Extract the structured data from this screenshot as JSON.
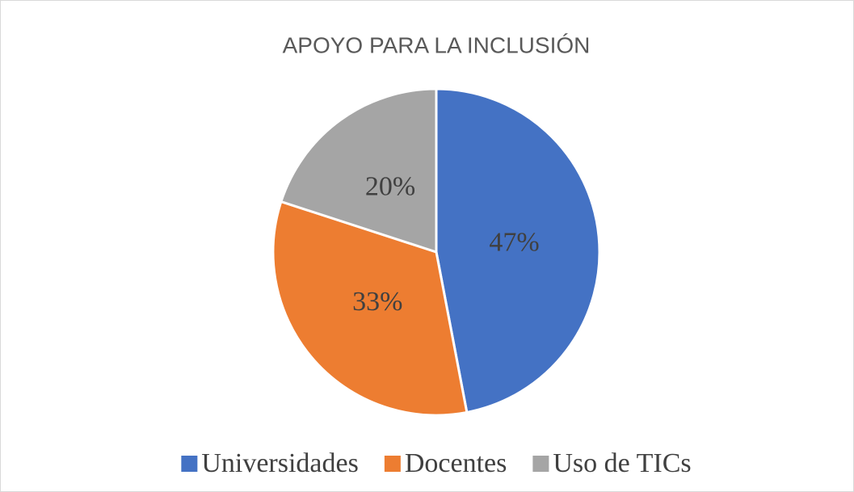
{
  "chart_data": {
    "type": "pie",
    "title": "APOYO PARA LA INCLUSIÓN",
    "categories": [
      "Universidades",
      "Docentes",
      "Uso de TICs"
    ],
    "values": [
      47,
      33,
      20
    ],
    "value_labels": [
      "47%",
      "33%",
      "20%"
    ],
    "colors": [
      "#4472c4",
      "#ed7d31",
      "#a5a5a5"
    ],
    "legend": "bottom"
  }
}
